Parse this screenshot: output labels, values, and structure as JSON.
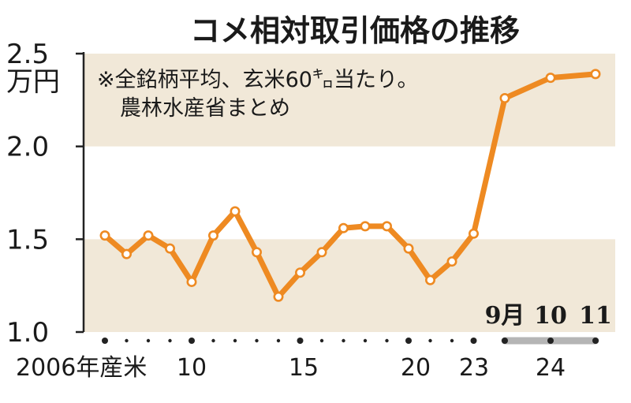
{
  "colors": {
    "band": "#f1e8d8",
    "line": "#ee8a22",
    "axis": "#222222",
    "marker_fill": "#ffffff",
    "recent_bar": "#b5b5b5"
  },
  "chart_data": {
    "type": "line",
    "title": "コメ相対取引価格の推移",
    "y_unit": "万円",
    "note_lines": [
      "※全銘柄平均、玄米60㌔当たり。",
      "農林水産省まとめ"
    ],
    "ylim": [
      1.0,
      2.5
    ],
    "y_ticks": [
      "1.0",
      "1.5",
      "2.0",
      "2.5"
    ],
    "x_tick_labels": [
      "2006年産米",
      "10",
      "15",
      "20",
      "23",
      "24"
    ],
    "month_labels": [
      "9月",
      "10",
      "11"
    ],
    "grid": false,
    "series": [
      {
        "x": [
          "2006",
          "2007",
          "2008",
          "2009",
          "2010",
          "2011",
          "2012",
          "2013",
          "2014",
          "2015",
          "2016",
          "2017",
          "2018",
          "2019",
          "2020",
          "2021",
          "2022",
          "2023",
          "2024/9",
          "2024/10",
          "2024/11"
        ],
        "values": [
          1.52,
          1.42,
          1.52,
          1.45,
          1.27,
          1.52,
          1.65,
          1.43,
          1.19,
          1.32,
          1.43,
          1.56,
          1.57,
          1.57,
          1.45,
          1.28,
          1.38,
          1.53,
          2.26,
          2.37,
          2.39
        ]
      }
    ]
  }
}
